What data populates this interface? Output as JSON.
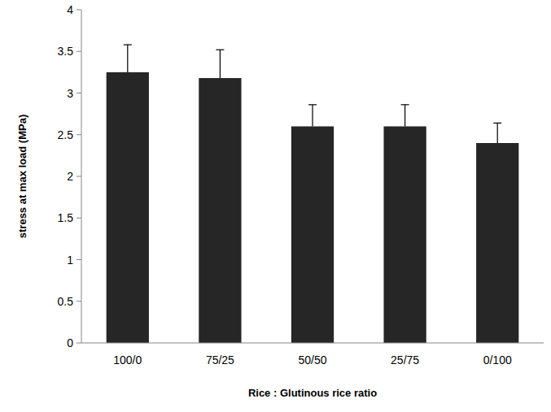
{
  "chart_data": {
    "type": "bar",
    "x_label": "Rice : Glutinous rice ratio",
    "y_label": "stress at max load (MPa)",
    "categories": [
      "100/0",
      "75/25",
      "50/50",
      "25/75",
      "0/100"
    ],
    "values": [
      3.25,
      3.18,
      2.6,
      2.6,
      2.4
    ],
    "errors": [
      0.33,
      0.34,
      0.26,
      0.26,
      0.24
    ],
    "color": "#262626",
    "ylim": [
      0,
      4
    ],
    "yticks": [
      0,
      0.5,
      1,
      1.5,
      2,
      2.5,
      3,
      3.5,
      4
    ],
    "grid": false
  }
}
